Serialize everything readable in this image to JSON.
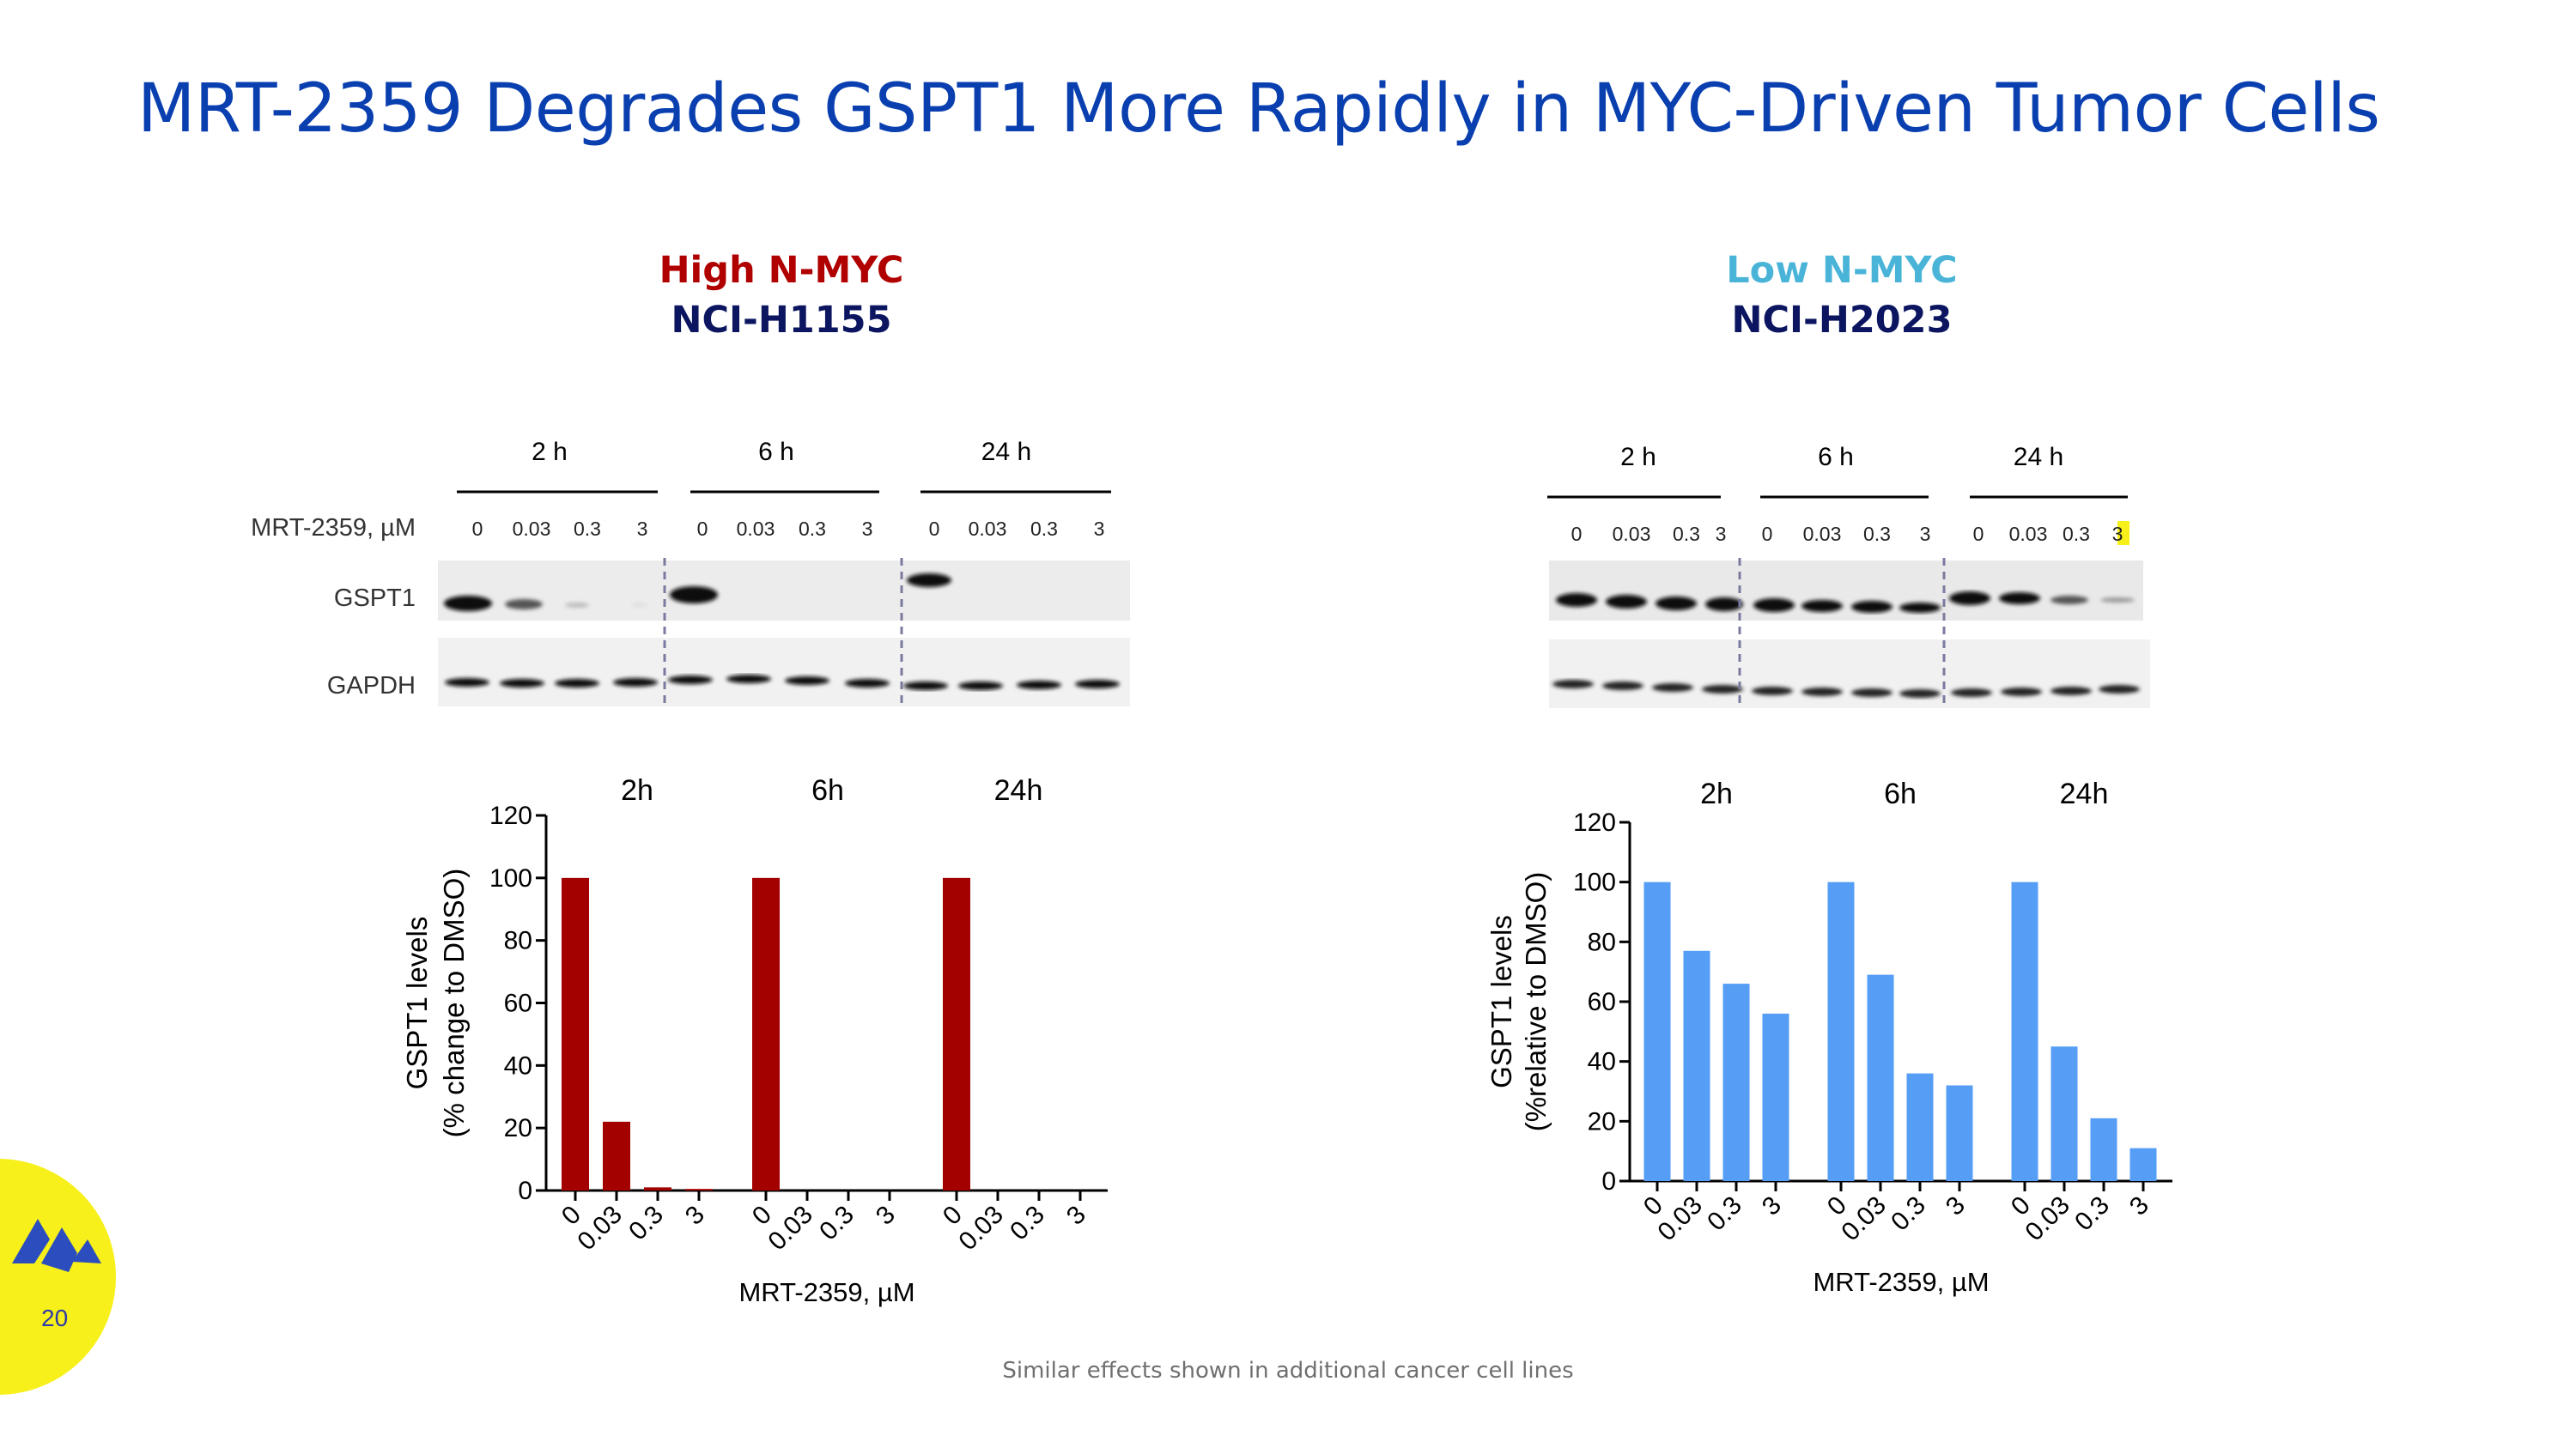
{
  "slide": {
    "title": "MRT-2359 Degrades GSPT1 More Rapidly in MYC-Driven Tumor Cells",
    "page_number": "20",
    "footnote": "Similar effects shown in additional cancer cell lines",
    "colors": {
      "title": "#0a3fb0",
      "high": "#b00000",
      "low": "#4ab4d8",
      "dark": "#0b1560",
      "yellow": "#f7f01a"
    }
  },
  "panels": {
    "left": {
      "condition": "High N-MYC",
      "cell_line": "NCI-H1155",
      "blot": {
        "timepoints": [
          "2 h",
          "6 h",
          "24 h"
        ],
        "dose_label": "MRT-2359, µM",
        "doses": [
          "0",
          "0.03",
          "0.3",
          "3"
        ],
        "rows": [
          "GSPT1",
          "GAPDH"
        ]
      }
    },
    "right": {
      "condition": "Low N-MYC",
      "cell_line": "NCI-H2023",
      "blot": {
        "timepoints": [
          "2 h",
          "6 h",
          "24 h"
        ],
        "doses": [
          "0",
          "0.03",
          "0.3",
          "3"
        ]
      }
    }
  },
  "chart_data": [
    {
      "type": "bar",
      "title": "",
      "group_labels": [
        "2h",
        "6h",
        "24h"
      ],
      "categories": [
        "0",
        "0.03",
        "0.3",
        "3"
      ],
      "series": [
        {
          "name": "2h",
          "values": [
            100,
            22,
            1,
            0.5
          ]
        },
        {
          "name": "6h",
          "values": [
            100,
            0,
            0,
            0
          ]
        },
        {
          "name": "24h",
          "values": [
            100,
            0,
            0,
            0
          ]
        }
      ],
      "xlabel": "MRT-2359, µM",
      "ylabel_line1": "GSPT1 levels",
      "ylabel_line2": "(% change to DMSO)",
      "yticks": [
        0,
        20,
        40,
        60,
        80,
        100,
        120
      ],
      "ylim": [
        0,
        120
      ],
      "color": "#a30000",
      "grid": false
    },
    {
      "type": "bar",
      "title": "",
      "group_labels": [
        "2h",
        "6h",
        "24h"
      ],
      "categories": [
        "0",
        "0.03",
        "0.3",
        "3"
      ],
      "series": [
        {
          "name": "2h",
          "values": [
            100,
            77,
            66,
            56
          ]
        },
        {
          "name": "6h",
          "values": [
            100,
            69,
            36,
            32
          ]
        },
        {
          "name": "24h",
          "values": [
            100,
            45,
            21,
            11
          ]
        }
      ],
      "xlabel": "MRT-2359, µM",
      "ylabel_line1": "GSPT1 levels",
      "ylabel_line2": "(%relative to DMSO)",
      "yticks": [
        0,
        20,
        40,
        60,
        80,
        100,
        120
      ],
      "ylim": [
        0,
        120
      ],
      "color": "#559df5",
      "grid": false
    }
  ]
}
